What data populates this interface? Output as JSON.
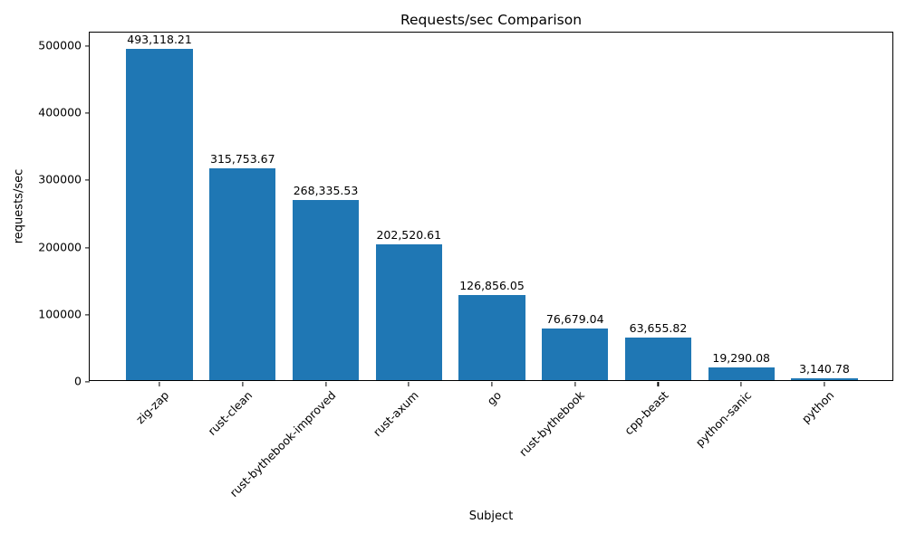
{
  "chart_data": {
    "type": "bar",
    "title": "Requests/sec Comparison",
    "xlabel": "Subject",
    "ylabel": "requests/sec",
    "categories": [
      "zig-zap",
      "rust-clean",
      "rust-bythebook-improved",
      "rust-axum",
      "go",
      "rust-bythebook",
      "cpp-beast",
      "python-sanic",
      "python"
    ],
    "values": [
      493118.21,
      315753.67,
      268335.53,
      202520.61,
      126856.05,
      76679.04,
      63655.82,
      19290.08,
      3140.78
    ],
    "value_labels": [
      "493,118.21",
      "315,753.67",
      "268,335.53",
      "202,520.61",
      "126,856.05",
      "76,679.04",
      "63,655.82",
      "19,290.08",
      "3,140.78"
    ],
    "yticks": [
      0,
      100000,
      200000,
      300000,
      400000,
      500000
    ],
    "ytick_labels": [
      "0",
      "100000",
      "200000",
      "300000",
      "400000",
      "500000"
    ],
    "ylim": [
      0,
      520000
    ],
    "bar_color": "#1f77b4",
    "grid": false,
    "legend": null,
    "x_tick_rotation_deg": 45
  }
}
